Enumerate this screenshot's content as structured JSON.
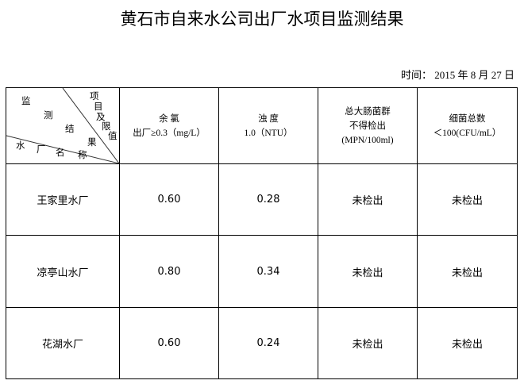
{
  "title": "黄石市自来水公司出厂水项目监测结果",
  "date": "时间： 2015 年  8 月 27 日",
  "corner": {
    "top_chars": [
      "监",
      "测",
      "结",
      "果"
    ],
    "right_chars": [
      "项",
      "目",
      "及",
      "限",
      "值"
    ],
    "bottom_chars": [
      "水",
      "厂",
      "名",
      "称"
    ]
  },
  "columns": [
    {
      "line1": "余 氯",
      "line2": "出厂≥0.3（mg/L）"
    },
    {
      "line1": "浊 度",
      "line2": "1.0（NTU）"
    },
    {
      "line1": "总大肠菌群",
      "line2": "不得检出",
      "line3": "(MPN/100ml)"
    },
    {
      "line1": "细菌总数",
      "line2": "＜100(CFU/mL）"
    }
  ],
  "rows": [
    {
      "name": "王家里水厂",
      "values": [
        "0.60",
        "0.28",
        "未检出",
        "未检出"
      ]
    },
    {
      "name": "凉亭山水厂",
      "values": [
        "0.80",
        "0.34",
        "未检出",
        "未检出"
      ]
    },
    {
      "name": "花湖水厂",
      "values": [
        "0.60",
        "0.24",
        "未检出",
        "未检出"
      ]
    }
  ]
}
